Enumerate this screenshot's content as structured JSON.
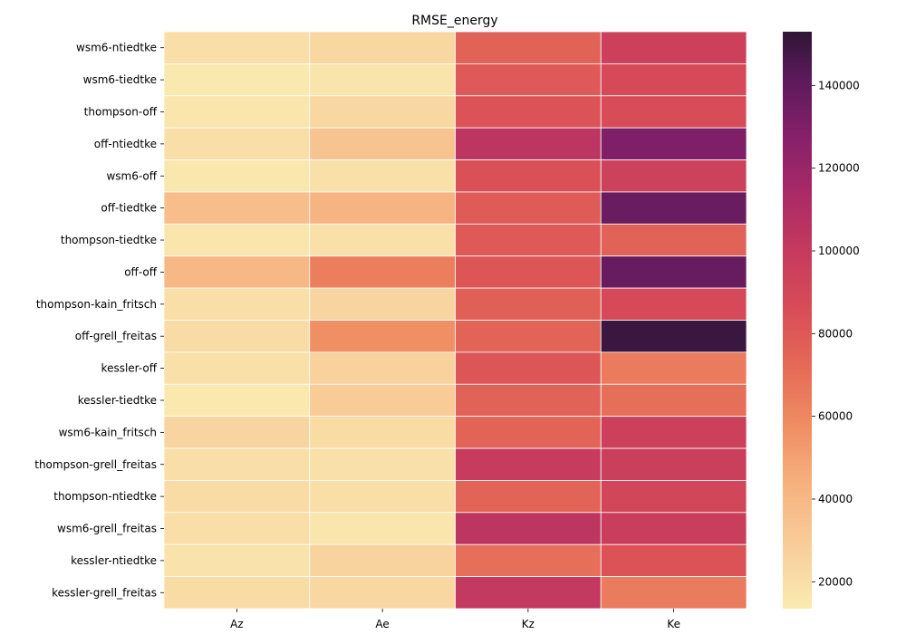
{
  "chart_data": {
    "type": "heatmap",
    "title": "RMSE_energy",
    "xlabel": "",
    "ylabel": "",
    "columns": [
      "Az",
      "Ae",
      "Kz",
      "Ke"
    ],
    "rows": [
      "wsm6-ntiedtke",
      "wsm6-tiedtke",
      "thompson-off",
      "off-ntiedtke",
      "wsm6-off",
      "off-tiedtke",
      "thompson-tiedtke",
      "off-off",
      "thompson-kain_fritsch",
      "off-grell_freitas",
      "kessler-off",
      "kessler-tiedtke",
      "wsm6-kain_fritsch",
      "thompson-grell_freitas",
      "thompson-ntiedtke",
      "wsm6-grell_freitas",
      "kessler-ntiedtke",
      "kessler-grell_freitas"
    ],
    "values": [
      [
        20000,
        24000,
        76000,
        95000
      ],
      [
        14500,
        17000,
        80000,
        88000
      ],
      [
        16000,
        24000,
        83000,
        86000
      ],
      [
        20000,
        34000,
        104000,
        130000
      ],
      [
        15500,
        19000,
        84000,
        94000
      ],
      [
        37000,
        42000,
        79000,
        137000
      ],
      [
        16500,
        19000,
        80000,
        76000
      ],
      [
        40000,
        64000,
        82000,
        138000
      ],
      [
        20000,
        25000,
        77000,
        88000
      ],
      [
        21000,
        57000,
        75000,
        150000
      ],
      [
        19000,
        27000,
        82000,
        65000
      ],
      [
        14800,
        30000,
        76000,
        70000
      ],
      [
        25000,
        22000,
        75000,
        95000
      ],
      [
        20000,
        19000,
        99000,
        96000
      ],
      [
        21000,
        20000,
        75000,
        91000
      ],
      [
        20000,
        16500,
        104000,
        97000
      ],
      [
        17500,
        26000,
        70000,
        83000
      ],
      [
        22000,
        24000,
        101000,
        65000
      ]
    ],
    "colorbar": {
      "range": [
        13500,
        153000
      ],
      "ticks": [
        20000,
        40000,
        60000,
        80000,
        100000,
        120000,
        140000
      ],
      "tick_labels": [
        "20000",
        "40000",
        "60000",
        "80000",
        "100000",
        "120000",
        "140000"
      ],
      "colormap": "rocket_r",
      "stops": [
        [
          0.0,
          "#faebb0"
        ],
        [
          0.1,
          "#f8d09c"
        ],
        [
          0.22,
          "#f6b07e"
        ],
        [
          0.32,
          "#ef8c62"
        ],
        [
          0.42,
          "#e56a57"
        ],
        [
          0.52,
          "#d84c57"
        ],
        [
          0.62,
          "#c53a5e"
        ],
        [
          0.72,
          "#a92a67"
        ],
        [
          0.82,
          "#85206a"
        ],
        [
          0.92,
          "#5b1a5b"
        ],
        [
          1.0,
          "#2e1636"
        ]
      ]
    },
    "grid": false,
    "legend": "colorbar-right"
  }
}
